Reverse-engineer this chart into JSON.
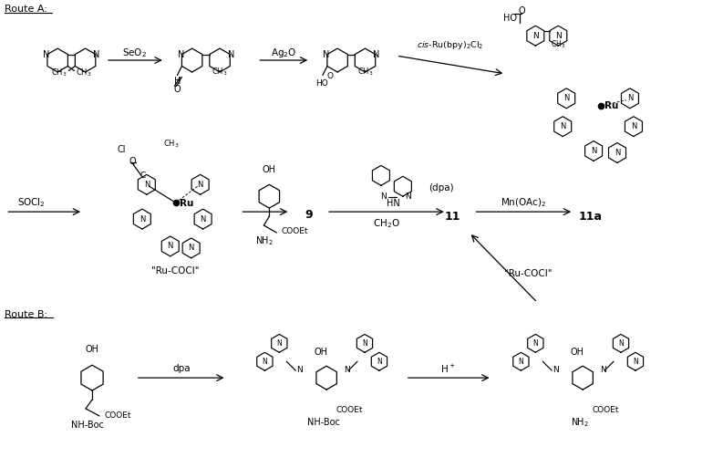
{
  "background_color": "#ffffff",
  "fig_width": 7.93,
  "fig_height": 5.13,
  "dpi": 100,
  "route_a_label": "Route A:",
  "route_b_label": "Route B:",
  "seo2": "SeO$_2$",
  "ag2o": "Ag$_2$O",
  "cis_ru": "$cis$-Ru(bpy)$_2$Cl$_2$",
  "socl2": "SOCl$_2$",
  "ch2o": "CH$_2$O",
  "mn_oac": "Mn(OAc)$_2$",
  "ru_cocl": "\"Ru-COCl\"",
  "dpa": "dpa",
  "hplus": "H$^+$",
  "nine": "9",
  "eleven": "11",
  "eleven_a": "11a",
  "dpa_label": "(dpa)"
}
